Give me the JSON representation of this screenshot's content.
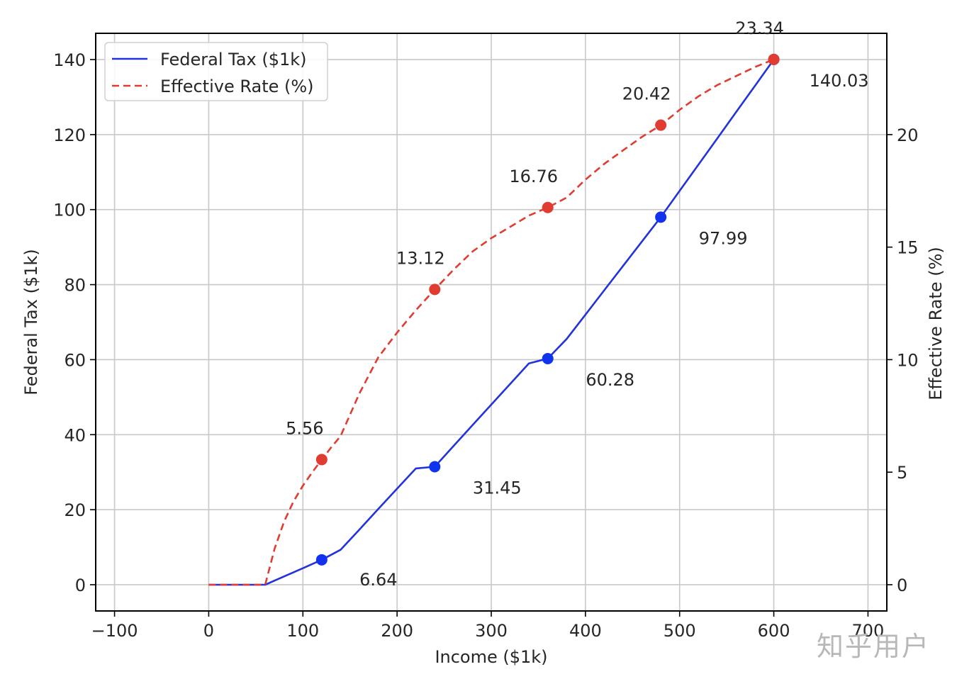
{
  "chart_data": {
    "type": "line",
    "xlabel": "Income ($1k)",
    "ylabel": "Federal Tax ($1k)",
    "y2label": "Effective Rate (%)",
    "xlim": [
      -120,
      720
    ],
    "ylim": [
      -7,
      147
    ],
    "y2lim": [
      -1.1667,
      24.5
    ],
    "xticks": [
      -100,
      0,
      100,
      200,
      300,
      400,
      500,
      600,
      700
    ],
    "yticks": [
      0,
      20,
      40,
      60,
      80,
      100,
      120,
      140
    ],
    "y2ticks": [
      0,
      5,
      10,
      15,
      20
    ],
    "grid": true,
    "legend_position": "top-left",
    "series": [
      {
        "name": "Federal Tax ($1k)",
        "axis": "left",
        "style": "solid",
        "color": "#2233dd",
        "marker_color": "#1133ee",
        "x": [
          0,
          20,
          40,
          60,
          80,
          100,
          120,
          140,
          160,
          180,
          200,
          220,
          240,
          260,
          280,
          300,
          320,
          340,
          360,
          380,
          400,
          420,
          440,
          460,
          480,
          500,
          520,
          540,
          560,
          580,
          600
        ],
        "y": [
          0,
          0,
          0,
          0,
          2.2,
          4.4,
          6.64,
          9.3,
          14.7,
          20.2,
          25.6,
          31.0,
          31.45,
          37.0,
          42.5,
          48.0,
          53.5,
          59.0,
          60.28,
          65.5,
          72.0,
          78.5,
          85.0,
          91.5,
          97.99,
          105.0,
          112.0,
          119.0,
          126.0,
          133.0,
          140.03
        ],
        "markers": [
          {
            "x": 120,
            "y": 6.64,
            "label": "6.64"
          },
          {
            "x": 240,
            "y": 31.45,
            "label": "31.45"
          },
          {
            "x": 360,
            "y": 60.28,
            "label": "60.28"
          },
          {
            "x": 480,
            "y": 97.99,
            "label": "97.99"
          },
          {
            "x": 600,
            "y": 140.03,
            "label": "140.03"
          }
        ]
      },
      {
        "name": "Effective Rate (%)",
        "axis": "right",
        "style": "dashed",
        "color": "#e03c31",
        "marker_color": "#e03c31",
        "x": [
          0,
          20,
          40,
          60,
          70,
          80,
          90,
          100,
          110,
          120,
          130,
          140,
          160,
          180,
          200,
          220,
          240,
          260,
          280,
          300,
          320,
          340,
          360,
          380,
          400,
          420,
          440,
          460,
          480,
          500,
          520,
          540,
          560,
          580,
          600
        ],
        "y": [
          0,
          0,
          0,
          0,
          1.6,
          2.8,
          3.7,
          4.4,
          5.0,
          5.56,
          6.1,
          6.6,
          8.5,
          10.1,
          11.2,
          12.2,
          13.12,
          14.0,
          14.8,
          15.4,
          15.9,
          16.4,
          16.76,
          17.2,
          18.0,
          18.7,
          19.3,
          19.9,
          20.42,
          21.1,
          21.7,
          22.2,
          22.6,
          23.0,
          23.34
        ],
        "markers": [
          {
            "x": 120,
            "y": 5.56,
            "label": "5.56"
          },
          {
            "x": 240,
            "y": 13.12,
            "label": "13.12"
          },
          {
            "x": 360,
            "y": 16.76,
            "label": "16.76"
          },
          {
            "x": 480,
            "y": 20.42,
            "label": "20.42"
          },
          {
            "x": 600,
            "y": 23.34,
            "label": "23.34"
          }
        ]
      }
    ]
  },
  "watermark": "知乎用户"
}
